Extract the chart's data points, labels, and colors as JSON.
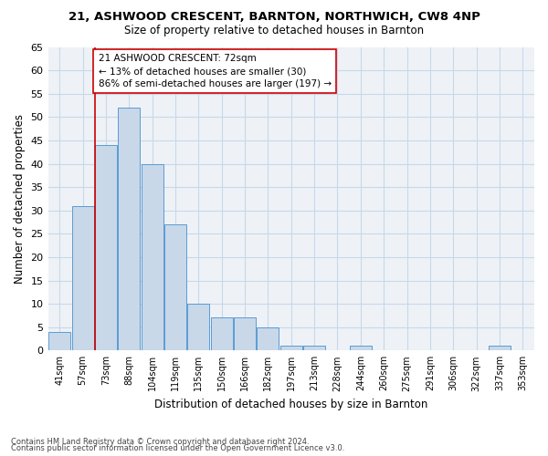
{
  "title1": "21, ASHWOOD CRESCENT, BARNTON, NORTHWICH, CW8 4NP",
  "title2": "Size of property relative to detached houses in Barnton",
  "xlabel": "Distribution of detached houses by size in Barnton",
  "ylabel": "Number of detached properties",
  "categories": [
    "41sqm",
    "57sqm",
    "73sqm",
    "88sqm",
    "104sqm",
    "119sqm",
    "135sqm",
    "150sqm",
    "166sqm",
    "182sqm",
    "197sqm",
    "213sqm",
    "228sqm",
    "244sqm",
    "260sqm",
    "275sqm",
    "291sqm",
    "306sqm",
    "322sqm",
    "337sqm",
    "353sqm"
  ],
  "values": [
    4,
    31,
    44,
    52,
    40,
    27,
    10,
    7,
    7,
    5,
    1,
    1,
    0,
    1,
    0,
    0,
    0,
    0,
    0,
    1,
    0
  ],
  "bar_color": "#c8d8e8",
  "bar_edge_color": "#5b9bd5",
  "highlight_index": 2,
  "highlight_line_color": "#cc0000",
  "ylim": [
    0,
    65
  ],
  "yticks": [
    0,
    5,
    10,
    15,
    20,
    25,
    30,
    35,
    40,
    45,
    50,
    55,
    60,
    65
  ],
  "annotation_line1": "21 ASHWOOD CRESCENT: 72sqm",
  "annotation_line2": "← 13% of detached houses are smaller (30)",
  "annotation_line3": "86% of semi-detached houses are larger (197) →",
  "annotation_box_color": "#ffffff",
  "annotation_box_edge": "#cc0000",
  "footer1": "Contains HM Land Registry data © Crown copyright and database right 2024.",
  "footer2": "Contains public sector information licensed under the Open Government Licence v3.0.",
  "grid_color": "#c8d8e8",
  "background_color": "#eef2f7"
}
